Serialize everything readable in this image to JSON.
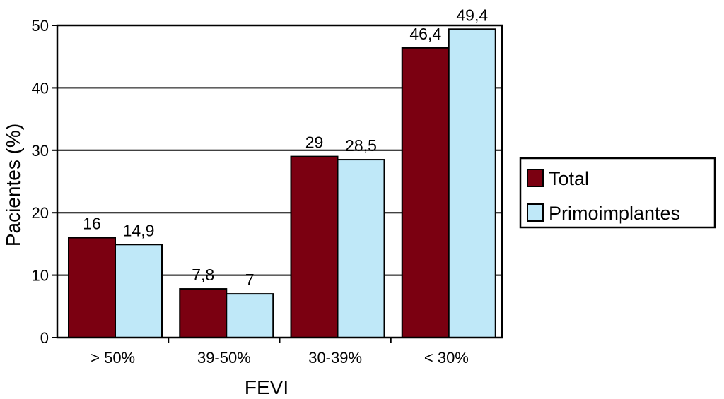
{
  "chart_data": {
    "type": "bar",
    "categories": [
      "> 50%",
      "39-50%",
      "30-39%",
      "< 30%"
    ],
    "series": [
      {
        "name": "Total",
        "values": [
          16,
          7.8,
          29,
          46.4
        ],
        "labels": [
          "16",
          "7,8",
          "29",
          "46,4"
        ],
        "color": "#7b0011"
      },
      {
        "name": "Primoimplantes",
        "values": [
          14.9,
          7,
          28.5,
          49.4
        ],
        "labels": [
          "14,9",
          "7",
          "28,5",
          "49,4"
        ],
        "color": "#bfe8f8"
      }
    ],
    "title": "",
    "xlabel": "FEVI",
    "ylabel": "Pacientes (%)",
    "ylim": [
      0,
      50
    ],
    "yticks": [
      0,
      10,
      20,
      30,
      40,
      50
    ],
    "grid": true,
    "legend_position": "right"
  }
}
